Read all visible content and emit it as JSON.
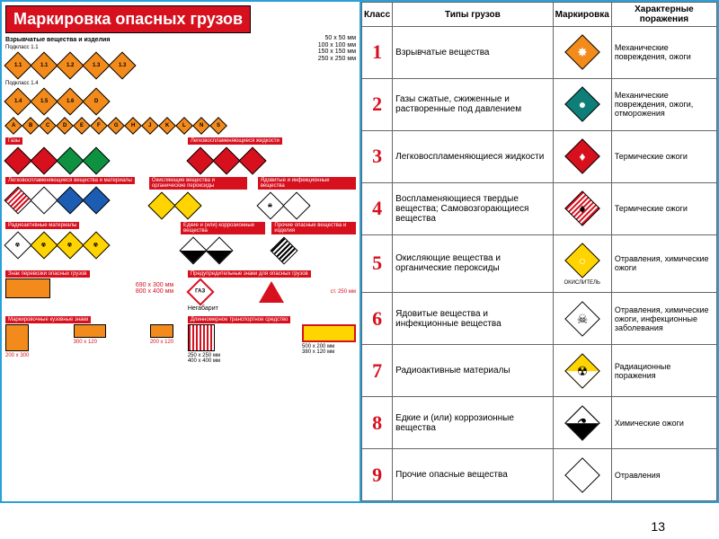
{
  "page_number": "13",
  "colors": {
    "red": "#d7101e",
    "orange": "#f28b1c",
    "green": "#0f9142",
    "teal": "#0f7e78",
    "blue": "#1c5db3",
    "yellow": "#ffd400",
    "white": "#ffffff",
    "black": "#000000",
    "border_blue": "#2aa0d8"
  },
  "left": {
    "title": "Маркировка опасных грузов",
    "sizes": [
      "50 x 50 мм",
      "100 x 100 мм",
      "150 x 150 мм",
      "250 x 250 мм"
    ],
    "class1": {
      "heading": "Взрывчатые вещества и изделия",
      "sub_labels": [
        "Подкласс 1.1",
        "Подкласс 1.4",
        "Подкласс 1.5",
        "Подкласс 1.6"
      ],
      "codes_row1": [
        "1.1",
        "1.1",
        "1.2",
        "1.3",
        "1.3"
      ],
      "codes_row2": [
        "1.4",
        "1.5",
        "1.6",
        "D"
      ],
      "codes_small": [
        "A",
        "B",
        "C",
        "D",
        "E",
        "F",
        "G",
        "H",
        "J",
        "K",
        "L",
        "N",
        "S"
      ]
    },
    "class2": {
      "heading": "Газы",
      "sub": "Подкласс 2.1"
    },
    "class3": {
      "heading": "Легковоспламеняющиеся жидкости",
      "sub": "Подкласс 3.1"
    },
    "class4": {
      "heading": "Легковоспламеняющиеся вещества и материалы",
      "subs": [
        "Подкласс 4.1",
        "Подкласс 4.2",
        "Подкласс 4.3"
      ]
    },
    "class5": {
      "heading": "Окисляющие вещества и органические пероксиды",
      "sub": "Подкласс 5.1"
    },
    "class6": {
      "heading": "Ядовитые и инфекционные вещества",
      "subs": [
        "Подкласс 6.1",
        "Подкласс 6.2"
      ]
    },
    "class7": {
      "heading": "Радиоактивные материалы",
      "subs": [
        "Подкласс 7.1",
        "Подкласс 7.2",
        "Подкласс 7.3",
        "Подкласс 7.4"
      ]
    },
    "class8": {
      "heading": "Едкие и (или) коррозионные вещества",
      "sub": "Подкласс 8.1"
    },
    "class9": {
      "heading": "Прочие опасные вещества и изделия",
      "sub": "Подкласс 9.1"
    },
    "transport_sign": {
      "heading": "Знак перевозки опасных грузов",
      "sizes": [
        "690 x 300 мм",
        "800 x 400 мм"
      ]
    },
    "warning_signs": {
      "heading": "Предупредительные знаки для опасных грузов",
      "size": "ст. 250 мм",
      "labels": [
        "ГАЗ",
        "Негабарит"
      ]
    },
    "body_marks": {
      "heading": "Маркировочные кузовные знаки",
      "sizes": [
        "200 x 300",
        "300 x 120",
        "200 x 120"
      ]
    },
    "long_vehicle": {
      "heading": "Длинномерное транспортное средство",
      "sizes_a": [
        "250 x 250 мм",
        "400 x 400 мм"
      ],
      "sizes_b": [
        "500 x 200 мм",
        "380 x 120 мм"
      ]
    }
  },
  "right": {
    "headers": [
      "Класс",
      "Типы грузов",
      "Маркировка",
      "Характерные поражения"
    ],
    "rows": [
      {
        "n": "1",
        "type": "Взрывчатые вещества",
        "mark": {
          "bg": "#f28b1c",
          "icon": "✸"
        },
        "hazard": "Механические повреждения, ожоги"
      },
      {
        "n": "2",
        "type": "Газы сжатые, сжиженные и растворенные под давлением",
        "mark": {
          "bg": "#0f7e78",
          "icon": "●"
        },
        "hazard": "Механические повреждения, ожоги, отморожения"
      },
      {
        "n": "3",
        "type": "Легковоспламеняющиеся жидкости",
        "mark": {
          "bg": "#d7101e",
          "icon": "♦"
        },
        "hazard": "Термические ожоги"
      },
      {
        "n": "4",
        "type": "Воспламеняющиеся твердые вещества; Самовозгорающиеся вещества",
        "mark": {
          "stripes": "red",
          "icon": "♦"
        },
        "hazard": "Термические ожоги"
      },
      {
        "n": "5",
        "type": "Окисляющие вещества и органические пероксиды",
        "mark": {
          "bg": "#ffd400",
          "icon": "○",
          "label": "ОКИСЛИТЕЛЬ"
        },
        "hazard": "Отравления, химические ожоги"
      },
      {
        "n": "6",
        "type": "Ядовитые вещества и инфекционные вещества",
        "mark": {
          "bg": "#ffffff",
          "icon": "☠"
        },
        "hazard": "Отравления, химические ожоги, инфекционные заболевания"
      },
      {
        "n": "7",
        "type": "Радиоактивные материалы",
        "mark": {
          "half_top": "#ffd400",
          "half_bot": "#ffffff",
          "icon": "☢"
        },
        "hazard": "Радиационные поражения"
      },
      {
        "n": "8",
        "type": "Едкие и (или) коррозионные вещества",
        "mark": {
          "half_top": "#ffffff",
          "half_bot": "#000000",
          "icon": "⚗"
        },
        "hazard": "Химические ожоги"
      },
      {
        "n": "9",
        "type": "Прочие опасные вещества",
        "mark": {
          "stripes": "black"
        },
        "hazard": "Отравления"
      }
    ]
  }
}
